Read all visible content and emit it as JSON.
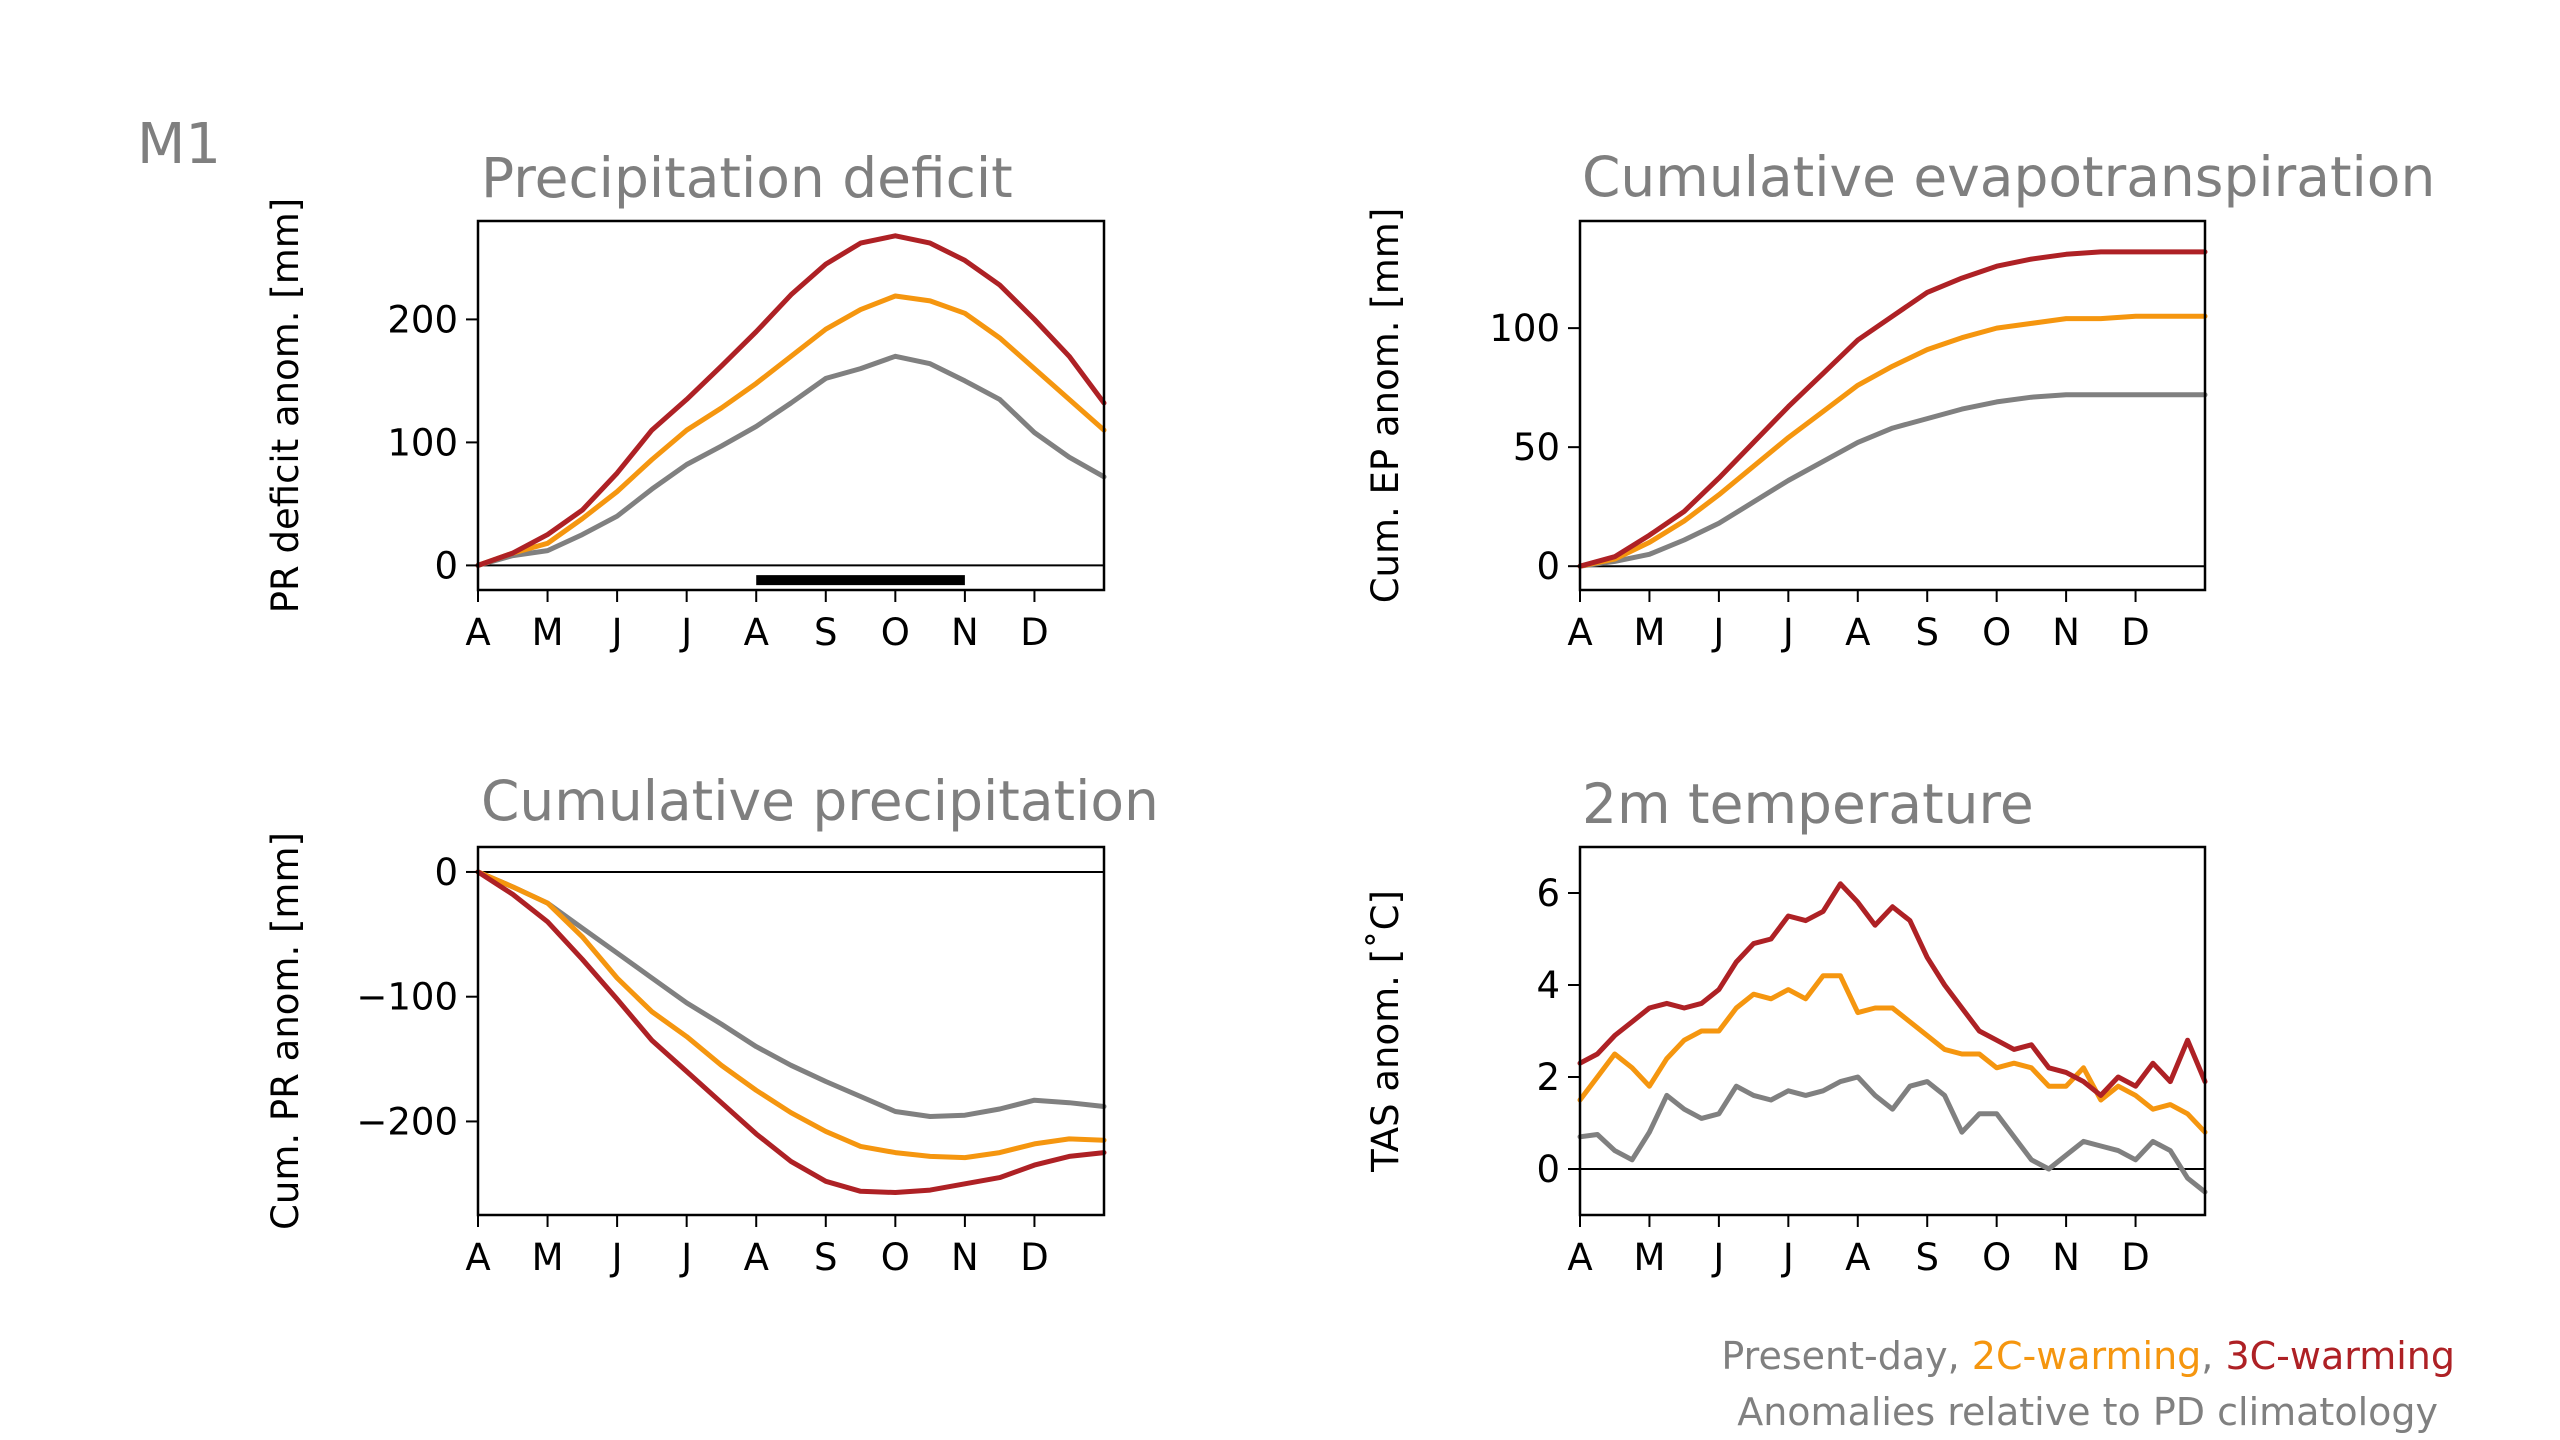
{
  "figure": {
    "panel_label": "M1",
    "legend": {
      "present_day": "Present-day",
      "sep1": ", ",
      "warming_2c": "2C-warming",
      "sep2": ", ",
      "warming_3c": "3C-warming",
      "note": "Anomalies relative to PD climatology"
    },
    "colors": {
      "present_day": "#808080",
      "warming_2c": "#f5960f",
      "warming_3c": "#ae2125",
      "title": "#7f7f7f"
    }
  },
  "chart_data": [
    {
      "id": "precip-deficit",
      "type": "line",
      "title": "Precipitation deficit",
      "ylabel": "PR deficit anom. [mm]",
      "xlabel": "",
      "x_ticks": [
        "A",
        "M",
        "J",
        "J",
        "A",
        "S",
        "O",
        "N",
        "D"
      ],
      "xlim": [
        0,
        9
      ],
      "ylim": [
        -20,
        280
      ],
      "y_ticks": [
        0,
        100,
        200
      ],
      "y_tick_labels": [
        "0",
        "100",
        "200"
      ],
      "zero_line": true,
      "highlight_bar": {
        "x_start": 4,
        "x_end": 7,
        "y": -12
      },
      "x": [
        0,
        0.5,
        1,
        1.5,
        2,
        2.5,
        3,
        3.5,
        4,
        4.5,
        5,
        5.5,
        6,
        6.5,
        7,
        7.5,
        8,
        8.5,
        9
      ],
      "series": [
        {
          "name": "Present-day",
          "color": "present_day",
          "values": [
            0,
            8,
            12,
            25,
            40,
            62,
            82,
            97,
            113,
            132,
            152,
            160,
            170,
            164,
            150,
            135,
            108,
            88,
            72
          ]
        },
        {
          "name": "2C-warming",
          "color": "warming_2c",
          "values": [
            0,
            10,
            18,
            38,
            60,
            86,
            110,
            128,
            148,
            170,
            192,
            208,
            219,
            215,
            205,
            185,
            160,
            135,
            110
          ]
        },
        {
          "name": "3C-warming",
          "color": "warming_3c",
          "values": [
            0,
            10,
            25,
            45,
            75,
            110,
            135,
            162,
            190,
            220,
            245,
            262,
            268,
            262,
            248,
            228,
            200,
            170,
            132
          ]
        }
      ]
    },
    {
      "id": "cum-evapotranspiration",
      "type": "line",
      "title": "Cumulative evapotranspiration",
      "ylabel": "Cum. EP anom. [mm]",
      "xlabel": "",
      "x_ticks": [
        "A",
        "M",
        "J",
        "J",
        "A",
        "S",
        "O",
        "N",
        "D"
      ],
      "xlim": [
        0,
        9
      ],
      "ylim": [
        -10,
        145
      ],
      "y_ticks": [
        0,
        50,
        100
      ],
      "y_tick_labels": [
        "0",
        "50",
        "100"
      ],
      "zero_line": true,
      "x": [
        0,
        0.5,
        1,
        1.5,
        2,
        2.5,
        3,
        3.5,
        4,
        4.5,
        5,
        5.5,
        6,
        6.5,
        7,
        7.5,
        8,
        8.5,
        9
      ],
      "series": [
        {
          "name": "Present-day",
          "color": "present_day",
          "values": [
            0,
            2,
            5,
            11,
            18,
            27,
            36,
            44,
            52,
            58,
            62,
            66,
            69,
            71,
            72,
            72,
            72,
            72,
            72
          ]
        },
        {
          "name": "2C-warming",
          "color": "warming_2c",
          "values": [
            0,
            3,
            10,
            19,
            30,
            42,
            54,
            65,
            76,
            84,
            91,
            96,
            100,
            102,
            104,
            104,
            105,
            105,
            105
          ]
        },
        {
          "name": "3C-warming",
          "color": "warming_3c",
          "values": [
            0,
            4,
            13,
            23,
            37,
            52,
            67,
            81,
            95,
            105,
            115,
            121,
            126,
            129,
            131,
            132,
            132,
            132,
            132
          ]
        }
      ]
    },
    {
      "id": "cum-precipitation",
      "type": "line",
      "title": "Cumulative precipitation",
      "ylabel": "Cum. PR anom. [mm]",
      "xlabel": "",
      "x_ticks": [
        "A",
        "M",
        "J",
        "J",
        "A",
        "S",
        "O",
        "N",
        "D"
      ],
      "xlim": [
        0,
        9
      ],
      "ylim": [
        -275,
        20
      ],
      "y_ticks": [
        0,
        -100,
        -200
      ],
      "y_tick_labels": [
        "0",
        "−100",
        "−200"
      ],
      "zero_line": true,
      "x": [
        0,
        0.5,
        1,
        1.5,
        2,
        2.5,
        3,
        3.5,
        4,
        4.5,
        5,
        5.5,
        6,
        6.5,
        7,
        7.5,
        8,
        8.5,
        9
      ],
      "series": [
        {
          "name": "Present-day",
          "color": "present_day",
          "values": [
            0,
            -12,
            -25,
            -45,
            -65,
            -85,
            -105,
            -122,
            -140,
            -155,
            -168,
            -180,
            -192,
            -196,
            -195,
            -190,
            -183,
            -185,
            -188
          ]
        },
        {
          "name": "2C-warming",
          "color": "warming_2c",
          "values": [
            0,
            -12,
            -25,
            -52,
            -85,
            -112,
            -132,
            -155,
            -175,
            -193,
            -208,
            -220,
            -225,
            -228,
            -229,
            -225,
            -218,
            -214,
            -215
          ]
        },
        {
          "name": "3C-warming",
          "color": "warming_3c",
          "values": [
            0,
            -18,
            -40,
            -70,
            -102,
            -135,
            -160,
            -185,
            -210,
            -232,
            -248,
            -256,
            -257,
            -255,
            -250,
            -245,
            -235,
            -228,
            -225
          ]
        }
      ]
    },
    {
      "id": "temperature-2m",
      "type": "line",
      "title": "2m temperature",
      "ylabel": "TAS anom. [˚C]",
      "xlabel": "",
      "x_ticks": [
        "A",
        "M",
        "J",
        "J",
        "A",
        "S",
        "O",
        "N",
        "D"
      ],
      "xlim": [
        0,
        9
      ],
      "ylim": [
        -1,
        7
      ],
      "y_ticks": [
        0,
        2,
        4,
        6
      ],
      "y_tick_labels": [
        "0",
        "2",
        "4",
        "6"
      ],
      "zero_line": true,
      "x": [
        0,
        0.25,
        0.5,
        0.75,
        1,
        1.25,
        1.5,
        1.75,
        2,
        2.25,
        2.5,
        2.75,
        3,
        3.25,
        3.5,
        3.75,
        4,
        4.25,
        4.5,
        4.75,
        5,
        5.25,
        5.5,
        5.75,
        6,
        6.25,
        6.5,
        6.75,
        7,
        7.25,
        7.5,
        7.75,
        8,
        8.25,
        8.5,
        8.75,
        9
      ],
      "series": [
        {
          "name": "Present-day",
          "color": "present_day",
          "values": [
            0.7,
            0.75,
            0.4,
            0.2,
            0.8,
            1.6,
            1.3,
            1.1,
            1.2,
            1.8,
            1.6,
            1.5,
            1.7,
            1.6,
            1.7,
            1.9,
            2.0,
            1.6,
            1.3,
            1.8,
            1.9,
            1.6,
            0.8,
            1.2,
            1.2,
            0.7,
            0.2,
            0.0,
            0.3,
            0.6,
            0.5,
            0.4,
            0.2,
            0.6,
            0.4,
            -0.2,
            -0.5
          ]
        },
        {
          "name": "2C-warming",
          "color": "warming_2c",
          "values": [
            1.5,
            2.0,
            2.5,
            2.2,
            1.8,
            2.4,
            2.8,
            3.0,
            3.0,
            3.5,
            3.8,
            3.7,
            3.9,
            3.7,
            4.2,
            4.2,
            3.4,
            3.5,
            3.5,
            3.2,
            2.9,
            2.6,
            2.5,
            2.5,
            2.2,
            2.3,
            2.2,
            1.8,
            1.8,
            2.2,
            1.5,
            1.8,
            1.6,
            1.3,
            1.4,
            1.2,
            0.8
          ]
        },
        {
          "name": "3C-warming",
          "color": "warming_3c",
          "values": [
            2.3,
            2.5,
            2.9,
            3.2,
            3.5,
            3.6,
            3.5,
            3.6,
            3.9,
            4.5,
            4.9,
            5.0,
            5.5,
            5.4,
            5.6,
            6.2,
            5.8,
            5.3,
            5.7,
            5.4,
            4.6,
            4.0,
            3.5,
            3.0,
            2.8,
            2.6,
            2.7,
            2.2,
            2.1,
            1.9,
            1.6,
            2.0,
            1.8,
            2.3,
            1.9,
            2.8,
            1.9
          ]
        }
      ]
    }
  ]
}
